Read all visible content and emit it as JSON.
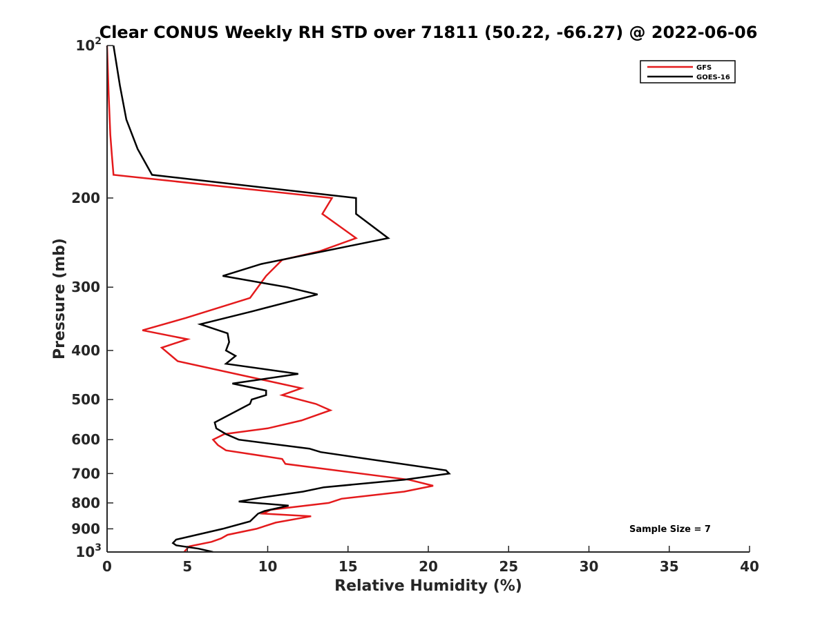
{
  "chart_data": {
    "type": "line",
    "title": "Clear CONUS Weekly RH STD over 71811 (50.22, -66.27) @ 2022-06-06",
    "xlabel": "Relative Humidity (%)",
    "ylabel": "Pressure (mb)",
    "xlim": [
      0,
      40
    ],
    "ylim": [
      100,
      1000
    ],
    "yscale": "log",
    "y_reversed": true,
    "grid": false,
    "legend_position": "top-right",
    "x_ticks": [
      "0",
      "5",
      "10",
      "15",
      "20",
      "25",
      "30",
      "35",
      "40"
    ],
    "y_ticks": [
      {
        "value": 100,
        "base": "10",
        "exp": "2"
      },
      {
        "value": 200,
        "label": "200"
      },
      {
        "value": 300,
        "label": "300"
      },
      {
        "value": 400,
        "label": "400"
      },
      {
        "value": 500,
        "label": "500"
      },
      {
        "value": 600,
        "label": "600"
      },
      {
        "value": 700,
        "label": "700"
      },
      {
        "value": 800,
        "label": "800"
      },
      {
        "value": 900,
        "label": "900"
      },
      {
        "value": 1000,
        "base": "10",
        "exp": "3"
      }
    ],
    "annotation": "Sample Size = 7",
    "series": [
      {
        "name": "GFS",
        "color": "#e41a1c",
        "points": [
          [
            0.0,
            100
          ],
          [
            0.1,
            125
          ],
          [
            0.2,
            150
          ],
          [
            0.3,
            165
          ],
          [
            0.4,
            180
          ],
          [
            14.0,
            200
          ],
          [
            13.4,
            215
          ],
          [
            15.5,
            240
          ],
          [
            13.2,
            255
          ],
          [
            10.9,
            265
          ],
          [
            9.9,
            285
          ],
          [
            8.9,
            315
          ],
          [
            4.9,
            345
          ],
          [
            2.2,
            365
          ],
          [
            5.0,
            380
          ],
          [
            3.4,
            395
          ],
          [
            4.4,
            420
          ],
          [
            12.1,
            475
          ],
          [
            10.9,
            490
          ],
          [
            13.0,
            510
          ],
          [
            13.9,
            525
          ],
          [
            12.1,
            550
          ],
          [
            10.0,
            570
          ],
          [
            7.3,
            585
          ],
          [
            6.6,
            600
          ],
          [
            6.9,
            615
          ],
          [
            7.4,
            630
          ],
          [
            10.9,
            655
          ],
          [
            11.1,
            670
          ],
          [
            18.8,
            720
          ],
          [
            20.3,
            740
          ],
          [
            18.5,
            760
          ],
          [
            14.6,
            785
          ],
          [
            13.8,
            800
          ],
          [
            10.2,
            825
          ],
          [
            9.7,
            840
          ],
          [
            12.7,
            850
          ],
          [
            10.5,
            875
          ],
          [
            9.3,
            900
          ],
          [
            7.5,
            925
          ],
          [
            7.1,
            940
          ],
          [
            6.5,
            955
          ],
          [
            5.1,
            975
          ],
          [
            4.8,
            1000
          ]
        ]
      },
      {
        "name": "GOES-16",
        "color": "#000000",
        "points": [
          [
            0.4,
            100
          ],
          [
            0.8,
            120
          ],
          [
            1.2,
            140
          ],
          [
            1.9,
            160
          ],
          [
            2.8,
            180
          ],
          [
            15.5,
            200
          ],
          [
            15.5,
            215
          ],
          [
            17.5,
            240
          ],
          [
            9.6,
            270
          ],
          [
            7.2,
            285
          ],
          [
            11.2,
            300
          ],
          [
            13.1,
            310
          ],
          [
            9.0,
            335
          ],
          [
            5.8,
            355
          ],
          [
            7.5,
            370
          ],
          [
            7.6,
            385
          ],
          [
            7.4,
            400
          ],
          [
            8.0,
            410
          ],
          [
            7.4,
            425
          ],
          [
            11.9,
            445
          ],
          [
            7.8,
            465
          ],
          [
            9.9,
            480
          ],
          [
            9.9,
            490
          ],
          [
            9.0,
            500
          ],
          [
            8.9,
            510
          ],
          [
            6.7,
            555
          ],
          [
            6.8,
            570
          ],
          [
            7.4,
            585
          ],
          [
            8.2,
            600
          ],
          [
            12.6,
            625
          ],
          [
            13.3,
            635
          ],
          [
            21.1,
            690
          ],
          [
            21.3,
            700
          ],
          [
            18.5,
            720
          ],
          [
            13.5,
            745
          ],
          [
            12.2,
            760
          ],
          [
            9.7,
            780
          ],
          [
            8.2,
            795
          ],
          [
            11.3,
            810
          ],
          [
            9.8,
            830
          ],
          [
            9.4,
            840
          ],
          [
            8.9,
            870
          ],
          [
            7.2,
            900
          ],
          [
            4.3,
            945
          ],
          [
            4.1,
            960
          ],
          [
            4.3,
            970
          ],
          [
            5.7,
            985
          ],
          [
            6.6,
            1000
          ]
        ]
      }
    ]
  }
}
